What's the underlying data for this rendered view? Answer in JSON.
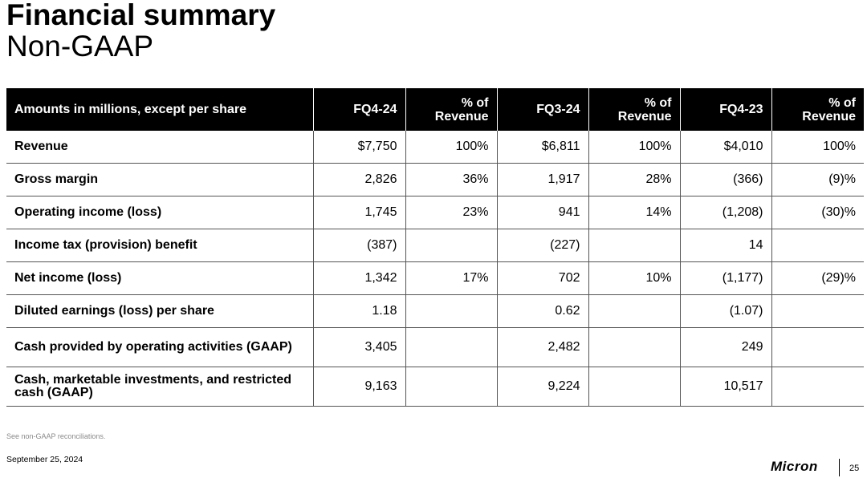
{
  "slide": {
    "title": "Financial summary",
    "subtitle": "Non-GAAP"
  },
  "table": {
    "headers": [
      "Amounts in millions, except per share",
      "FQ4-24",
      "% of Revenue",
      "FQ3-24",
      "% of Revenue",
      "FQ4-23",
      "% of Revenue"
    ],
    "rows": [
      {
        "label": "Revenue",
        "cells": [
          "$7,750",
          "100%",
          "$6,811",
          "100%",
          "$4,010",
          "100%"
        ]
      },
      {
        "label": "Gross margin",
        "cells": [
          "2,826",
          "36%",
          "1,917",
          "28%",
          "(366)",
          "(9)%"
        ]
      },
      {
        "label": "Operating income (loss)",
        "cells": [
          "1,745",
          "23%",
          "941",
          "14%",
          "(1,208)",
          "(30)%"
        ]
      },
      {
        "label": "Income tax (provision) benefit",
        "cells": [
          "(387)",
          "",
          "(227)",
          "",
          "14",
          ""
        ]
      },
      {
        "label": "Net income (loss)",
        "cells": [
          "1,342",
          "17%",
          "702",
          "10%",
          "(1,177)",
          "(29)%"
        ]
      },
      {
        "label": "Diluted earnings (loss) per share",
        "cells": [
          "1.18",
          "",
          "0.62",
          "",
          "(1.07)",
          ""
        ]
      },
      {
        "label": "Cash provided by operating activities (GAAP)",
        "cells": [
          "3,405",
          "",
          "2,482",
          "",
          "249",
          ""
        ]
      },
      {
        "label": "Cash, marketable investments, and restricted cash (GAAP)",
        "cells": [
          "9,163",
          "",
          "9,224",
          "",
          "10,517",
          ""
        ]
      }
    ]
  },
  "footer": {
    "note": "See non-GAAP reconciliations.",
    "date": "September 25, 2024",
    "logo_text": "Micron",
    "page_number": "25"
  }
}
